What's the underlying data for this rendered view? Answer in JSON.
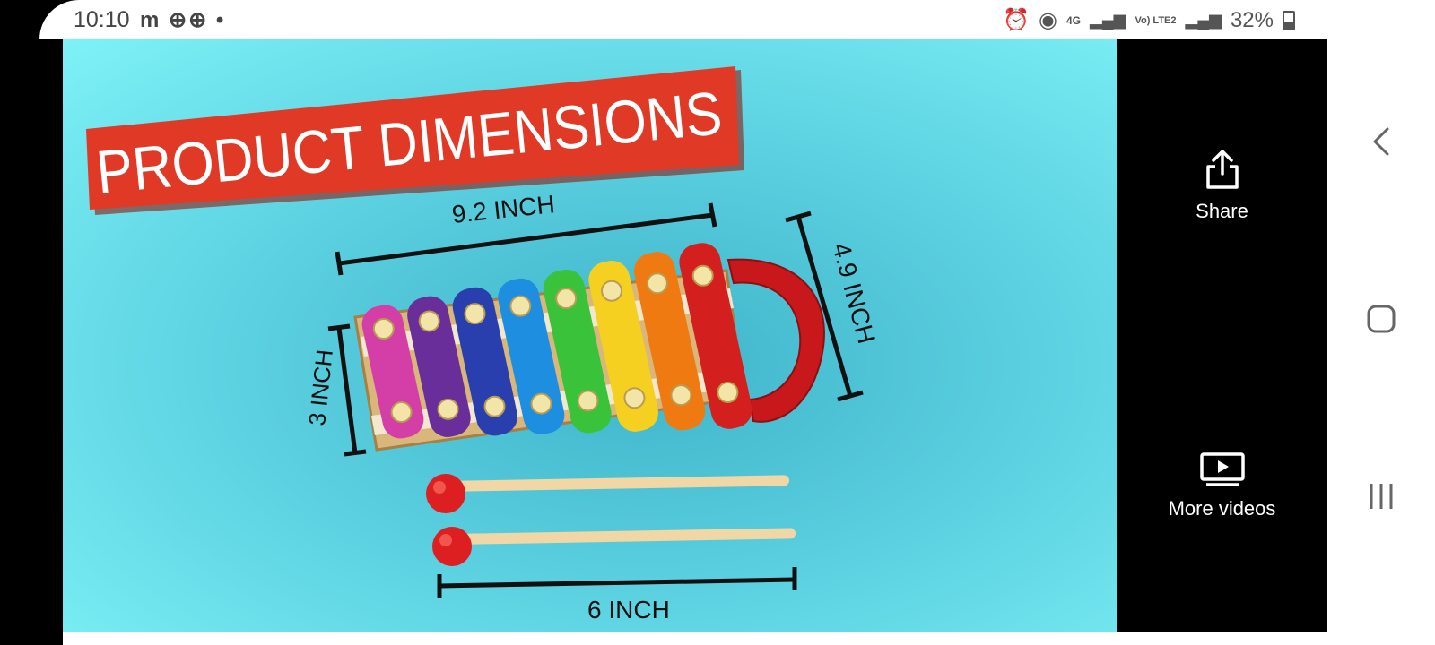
{
  "status_bar": {
    "time": "10:10",
    "left_icons": "m ⊕⊕ •",
    "battery": "32%",
    "network": "4G",
    "lte": "Vo) LTE2"
  },
  "video": {
    "banner_text": "PRODUCT DIMENSIONS",
    "dim_top": "9.2 INCH",
    "dim_right": "4.9 INCH",
    "dim_left": "3 INCH",
    "dim_bottom": "6 INCH",
    "bar_colors": [
      "#d33fa6",
      "#6a2e9a",
      "#2a3fae",
      "#1e8ee0",
      "#39c23a",
      "#f5d020",
      "#f07a12",
      "#d41f1f"
    ]
  },
  "side_panel": {
    "share_label": "Share",
    "more_videos_label": "More videos"
  },
  "nav": {
    "back_icon": "chevron-left-icon",
    "home_icon": "home-square-icon",
    "recents_icon": "recents-icon"
  }
}
